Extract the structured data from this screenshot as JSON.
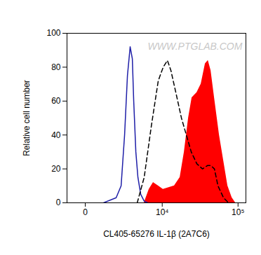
{
  "chart_data": {
    "type": "line",
    "x_label": "CL405-65276 IL-1β (2A7C6)",
    "y_label": "Relative cell number",
    "annotations": [
      {
        "text": "WWW.PTGLAB.COM"
      }
    ],
    "log": "x",
    "xlim": [
      -840,
      126000
    ],
    "xticks": [
      0,
      {
        "value": 10000,
        "label": "10⁴"
      },
      {
        "value": 100000,
        "label": "10⁵"
      }
    ],
    "ylim": [
      0,
      100
    ],
    "yticks": [
      0,
      20,
      40,
      60,
      80,
      100
    ],
    "grid": false,
    "series": [
      {
        "type": "area",
        "color": "#ff0000",
        "x": [
          5436,
          6456,
          7452,
          8784,
          10320,
          12360,
          14760,
          17592,
          20040,
          22800,
          25356,
          29436,
          33408,
          37896,
          41280,
          44844,
          49752,
          57576,
          65208,
          73824,
          83748,
          92808
        ],
        "values": [
          0,
          8,
          12,
          10,
          8,
          9,
          10,
          15,
          30,
          50,
          62,
          65,
          70,
          82,
          84,
          78,
          62,
          40,
          25,
          10,
          3,
          0
        ]
      },
      {
        "type": "line",
        "color": "#1f1fa8",
        "line_style": "solid",
        "x": [
          840,
          1740,
          2196,
          2556,
          2880,
          3216,
          3504,
          3696,
          4008,
          4332,
          4800,
          5436,
          6156
        ],
        "values": [
          0,
          3,
          10,
          40,
          75,
          92,
          85,
          60,
          30,
          15,
          5,
          1,
          0
        ]
      },
      {
        "type": "line",
        "color": "#000000",
        "line_style": "dashed",
        "x": [
          4220,
          5436,
          6948,
          8784,
          10320,
          11820,
          13224,
          15444,
          18372,
          21360,
          24816,
          29436,
          34872,
          40404,
          44844,
          49752,
          55320,
          65208,
          75396
        ],
        "values": [
          0,
          15,
          45,
          72,
          80,
          84,
          78,
          65,
          50,
          40,
          30,
          23,
          20,
          22,
          22,
          20,
          10,
          3,
          0
        ]
      }
    ]
  }
}
